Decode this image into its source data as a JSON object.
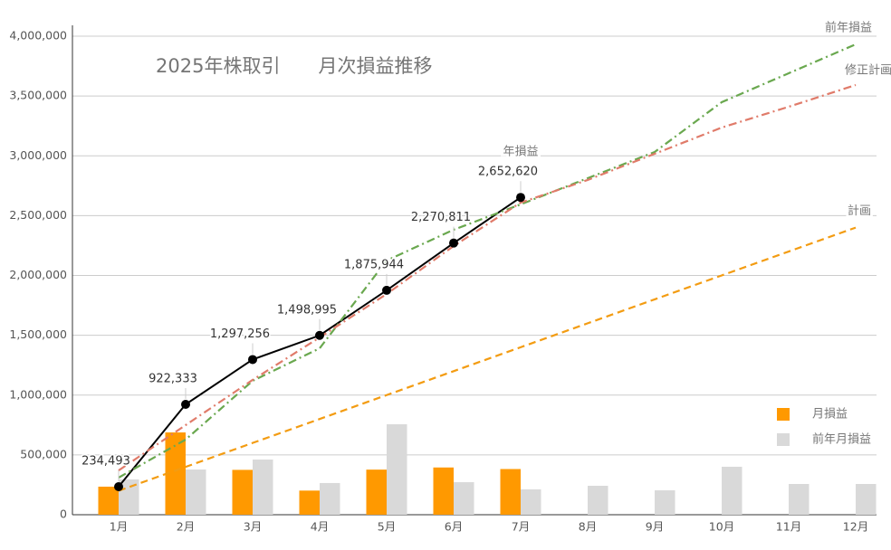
{
  "chart_data": {
    "type": "combo",
    "title": "2025年株取引　　月次損益推移",
    "categories": [
      "1月",
      "2月",
      "3月",
      "4月",
      "5月",
      "6月",
      "7月",
      "8月",
      "9月",
      "10月",
      "11月",
      "12月"
    ],
    "ylim": [
      0,
      4000000
    ],
    "yticks": [
      0,
      {
        "value": 500000,
        "label": "500,000"
      },
      {
        "value": 1000000,
        "label": "1,000,000"
      },
      {
        "value": 1500000,
        "label": "1,500,000"
      },
      {
        "value": 2000000,
        "label": "2,000,000"
      },
      {
        "value": 2500000,
        "label": "2,500,000"
      },
      {
        "value": 3000000,
        "label": "3,000,000"
      },
      {
        "value": 3500000,
        "label": "3,500,000"
      },
      {
        "value": 4000000,
        "label": "4,000,000"
      }
    ],
    "grid": true,
    "legend": "right",
    "series": [
      {
        "name": "年損益",
        "type": "line",
        "color": "#000000",
        "dash": "solid",
        "markers": true,
        "values": [
          234493,
          922333,
          1297256,
          1498995,
          1875944,
          2270811,
          2652620,
          null,
          null,
          null,
          null,
          null
        ],
        "value_labels": [
          "234,493",
          "922,333",
          "1,297,256",
          "1,498,995",
          "1,875,944",
          "2,270,811",
          "2,652,620",
          null,
          null,
          null,
          null,
          null
        ]
      },
      {
        "name": "前年損益",
        "type": "line",
        "color": "#6aa84f",
        "dash": "dashdot",
        "values": [
          310000,
          628000,
          1119000,
          1391000,
          2125000,
          2382000,
          2594000,
          2813000,
          3032000,
          3448000,
          3690000,
          3932000
        ]
      },
      {
        "name": "修正計画",
        "type": "line",
        "color": "#e07b6a",
        "dash": "dashdot",
        "values": [
          370000,
          749000,
          1127000,
          1482000,
          1845000,
          2246000,
          2609000,
          2798000,
          3017000,
          3236000,
          3410000,
          3592000
        ]
      },
      {
        "name": "計画",
        "type": "line",
        "color": "#f39c12",
        "dash": "dashed",
        "values": [
          200000,
          400000,
          600000,
          800000,
          1000000,
          1200000,
          1400000,
          1600000,
          1800000,
          2000000,
          2200000,
          2400000
        ]
      },
      {
        "name": "月損益",
        "type": "bar",
        "color": "#ff9900",
        "values": [
          234493,
          687840,
          374923,
          201739,
          376949,
          394867,
          381809,
          null,
          null,
          null,
          null,
          null
        ]
      },
      {
        "name": "前年月損益",
        "type": "bar",
        "color": "#d9d9d9",
        "values": [
          295000,
          378000,
          461000,
          265000,
          756000,
          272000,
          212000,
          242000,
          204000,
          401000,
          257000,
          257000
        ]
      }
    ]
  }
}
